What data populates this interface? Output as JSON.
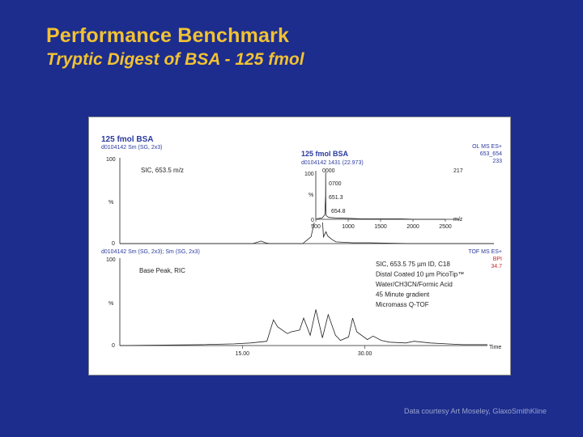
{
  "slide": {
    "title": "Performance Benchmark",
    "subtitle": "Tryptic Digest of BSA - 125 fmol",
    "credit": "Data courtesy Art Moseley, GlaxoSmithKline",
    "background_color": "#1c2d8e",
    "title_color": "#f2c232"
  },
  "figure": {
    "top_header": {
      "name": "125 fmol BSA",
      "file": "d0104142 Sm (SG, 2x3)",
      "channel": "OL MS ES+",
      "mass": "653_654",
      "intensity": "233"
    },
    "inset_header": {
      "name": "125 fmol BSA",
      "file": "d0104142 1431 (22.973)"
    },
    "bottom_header": {
      "file": "d0104142 Sm (SG, 2x3); Sm (SG, 2x3)",
      "channel": "TOF MS ES+",
      "trace": "BPI",
      "intensity": "34.7"
    },
    "sic_label": "SIC, 653.5 m/z",
    "bpi_label": "Base Peak, RIC",
    "conditions": [
      "SIC, 653.5 75 µm ID, C18",
      "Distal Coated 10 µm PicoTip™",
      "Water/CH3CN/Formic Acid",
      "45 Minute gradient",
      "Micromass Q-TOF"
    ]
  },
  "chart_data": [
    {
      "type": "line",
      "title": "125 fmol BSA",
      "trace": "SIC, 653.5 m/z",
      "ylabel": "%",
      "ylim": [
        0,
        100
      ],
      "yticks": [
        "100",
        "0"
      ],
      "xlim": [
        0,
        45
      ],
      "x": [
        0,
        5,
        8,
        10,
        12,
        14,
        16,
        17,
        17.5,
        18,
        20,
        22,
        22.5,
        23,
        23.5,
        24,
        24.2,
        24.5,
        24.8,
        25,
        25.5,
        26,
        28,
        30,
        35,
        40,
        45
      ],
      "y": [
        0,
        0,
        0,
        0,
        0,
        0,
        0,
        3,
        1,
        0,
        0,
        0,
        4,
        8,
        30,
        100,
        55,
        8,
        14,
        9,
        5,
        2,
        1,
        1,
        0,
        0,
        0
      ]
    },
    {
      "type": "line",
      "title": "125 fmol BSA",
      "trace": "inset mass spectrum",
      "ylabel": "%",
      "ylim": [
        0,
        100
      ],
      "yticks": [
        "100",
        "0"
      ],
      "xlabel": "m/z",
      "xlim": [
        500,
        2500
      ],
      "xticks": [
        "500",
        "1000",
        "1500",
        "2000",
        "2500"
      ],
      "peak_labels": [
        "217",
        "0000",
        "0700",
        "651.3",
        "654.8"
      ],
      "x": [
        500,
        550,
        600,
        640,
        651.3,
        653,
        654.8,
        660,
        700,
        800,
        1000,
        1200,
        1500,
        1800,
        2000,
        2200,
        2500
      ],
      "y": [
        0,
        2,
        3,
        10,
        50,
        100,
        32,
        8,
        4,
        3,
        2,
        1,
        1,
        1,
        0,
        0,
        0
      ]
    },
    {
      "type": "line",
      "title": "125 fmol BSA",
      "trace": "Base Peak, RIC",
      "ylabel": "%",
      "ylim": [
        0,
        100
      ],
      "yticks": [
        "100",
        "0"
      ],
      "xlabel": "Time",
      "xlim": [
        0,
        45
      ],
      "xticks": [
        "15.00",
        "30.00"
      ],
      "x": [
        0,
        10,
        14,
        16,
        18,
        18.8,
        19.3,
        20.5,
        21,
        22,
        22.5,
        23.3,
        24,
        24.8,
        25.5,
        26.4,
        27,
        28,
        28.5,
        29,
        30.3,
        31,
        32,
        33,
        35,
        36,
        38,
        40,
        42,
        45
      ],
      "y": [
        0,
        1,
        2,
        3,
        5,
        30,
        22,
        14,
        16,
        18,
        32,
        12,
        42,
        9,
        36,
        12,
        6,
        10,
        32,
        16,
        7,
        11,
        6,
        4,
        3,
        5,
        3,
        2,
        1,
        1
      ]
    }
  ]
}
